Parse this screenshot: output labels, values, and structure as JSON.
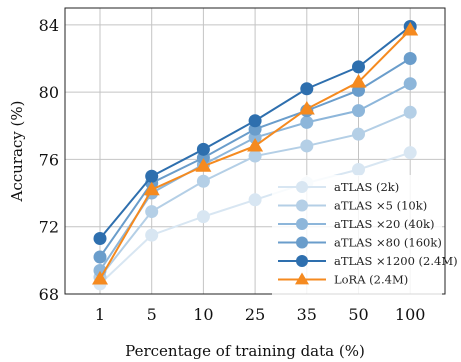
{
  "chart_data": {
    "type": "line",
    "xlabel": "Percentage of training data (%)",
    "ylabel": "Accuracy (%)",
    "categories": [
      "1",
      "5",
      "10",
      "25",
      "35",
      "50",
      "100"
    ],
    "ylim": [
      68,
      85
    ],
    "yticks": [
      68,
      72,
      76,
      80,
      84
    ],
    "grid": true,
    "legend_position": "bottom-right",
    "series": [
      {
        "name": "aTLAS (2k)",
        "color": "#d8e6f2",
        "marker": "circle",
        "values": [
          68.6,
          71.5,
          72.6,
          73.6,
          74.6,
          75.4,
          76.4
        ]
      },
      {
        "name": "aTLAS ×5 (10k)",
        "color": "#b4cfe6",
        "marker": "circle",
        "values": [
          69.0,
          72.9,
          74.7,
          76.2,
          76.8,
          77.5,
          78.8
        ]
      },
      {
        "name": "aTLAS ×20 (40k)",
        "color": "#8db6da",
        "marker": "circle",
        "values": [
          69.4,
          74.0,
          75.7,
          77.3,
          78.2,
          78.9,
          80.5
        ]
      },
      {
        "name": "aTLAS ×80 (160k)",
        "color": "#6a9dcb",
        "marker": "circle",
        "values": [
          70.2,
          74.6,
          76.1,
          77.8,
          78.9,
          80.1,
          82.0
        ]
      },
      {
        "name": "aTLAS ×1200 (2.4M)",
        "color": "#2e6fae",
        "marker": "circle",
        "values": [
          71.3,
          75.0,
          76.6,
          78.3,
          80.2,
          81.5,
          83.9
        ]
      },
      {
        "name": "LoRA (2.4M)",
        "color": "#f58a1f",
        "marker": "triangle",
        "values": [
          68.9,
          74.2,
          75.6,
          76.8,
          79.0,
          80.6,
          83.7
        ]
      }
    ]
  }
}
